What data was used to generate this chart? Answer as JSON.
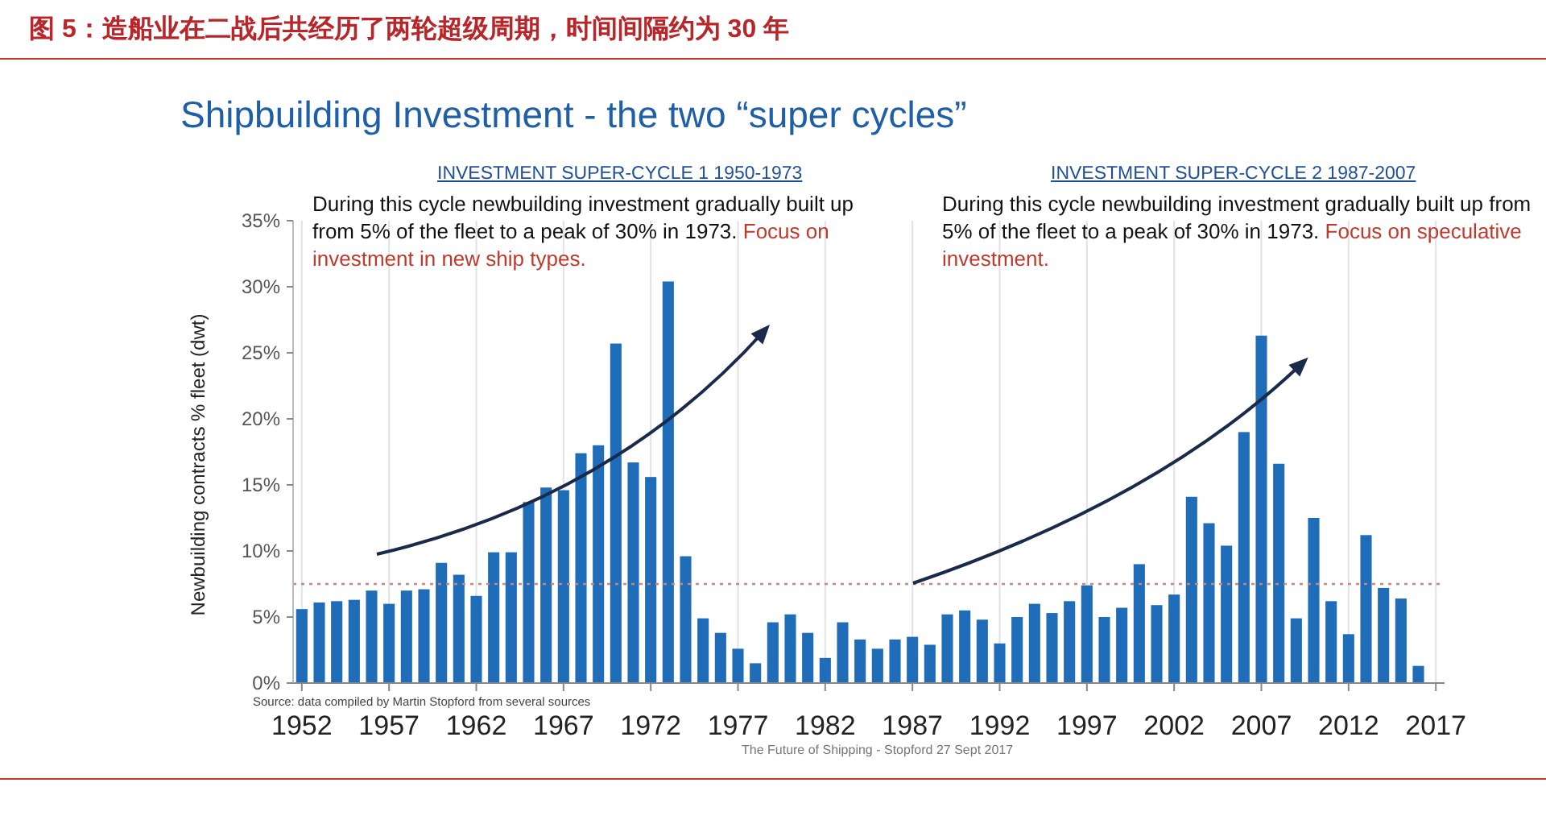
{
  "chart_data": {
    "type": "bar",
    "title": "图 5：造船业在二战后共经历了两轮超级周期，时间间隔约为 30 年",
    "subtitle": "Shipbuilding Investment - the two “super cycles”",
    "ylabel": "Newbuilding contracts % fleet (dwt)",
    "x": [
      1952,
      1953,
      1954,
      1955,
      1956,
      1957,
      1958,
      1959,
      1960,
      1961,
      1962,
      1963,
      1964,
      1965,
      1966,
      1967,
      1968,
      1969,
      1970,
      1971,
      1972,
      1973,
      1974,
      1975,
      1976,
      1977,
      1978,
      1979,
      1980,
      1981,
      1982,
      1983,
      1984,
      1985,
      1986,
      1987,
      1988,
      1989,
      1990,
      1991,
      1992,
      1993,
      1994,
      1995,
      1996,
      1997,
      1998,
      1999,
      2000,
      2001,
      2002,
      2003,
      2004,
      2005,
      2006,
      2007,
      2008,
      2009,
      2010,
      2011,
      2012,
      2013,
      2014,
      2015,
      2016
    ],
    "values": [
      5.6,
      6.1,
      6.2,
      6.3,
      7.0,
      6.0,
      7.0,
      7.1,
      9.1,
      8.2,
      6.6,
      9.9,
      9.9,
      13.7,
      14.8,
      14.6,
      17.4,
      18.0,
      25.7,
      16.7,
      15.6,
      30.4,
      9.6,
      4.9,
      3.8,
      2.6,
      1.5,
      4.6,
      5.2,
      3.8,
      1.9,
      4.6,
      3.3,
      2.6,
      3.3,
      3.5,
      2.9,
      5.2,
      5.5,
      4.8,
      3.0,
      5.0,
      6.0,
      5.3,
      6.2,
      7.4,
      5.0,
      5.7,
      9.0,
      5.9,
      6.7,
      14.1,
      12.1,
      10.4,
      19.0,
      26.3,
      16.6,
      4.9,
      12.5,
      6.2,
      3.7,
      11.2,
      7.2,
      6.4,
      1.3
    ],
    "color": "#1f6cb8",
    "xlim": [
      1951.5,
      2017.5
    ],
    "xticks": [
      1952,
      1957,
      1962,
      1967,
      1972,
      1977,
      1982,
      1987,
      1992,
      1997,
      2002,
      2007,
      2012,
      2017
    ],
    "ylim": [
      0,
      35
    ],
    "yticks": [
      {
        "value": 0,
        "label": "0%"
      },
      {
        "value": 5,
        "label": "5%"
      },
      {
        "value": 10,
        "label": "10%"
      },
      {
        "value": 15,
        "label": "15%"
      },
      {
        "value": 20,
        "label": "20%"
      },
      {
        "value": 25,
        "label": "25%"
      },
      {
        "value": 30,
        "label": "30%"
      },
      {
        "value": 35,
        "label": "35%"
      }
    ],
    "grid": "x",
    "ref_lines": [
      {
        "axis": "y",
        "value": 7.5,
        "color": "#c9857f",
        "line_style": "dotted"
      }
    ],
    "annotations": [
      "INVESTMENT SUPER-CYCLE 1 1950-1973",
      "During this cycle newbuilding investment gradually built up from 5% of the fleet to a peak of 30% in 1973.",
      "Focus on investment in new ship types.",
      "INVESTMENT SUPER-CYCLE 2 1987-2007",
      "During this cycle newbuilding investment gradually built up from 5% of the fleet to a peak of 30% in 1973.",
      "Focus on speculative investment.",
      "Source: data compiled by Martin Stopford from several sources",
      "The Future of Shipping - Stopford 27 Sept 2017"
    ]
  }
}
